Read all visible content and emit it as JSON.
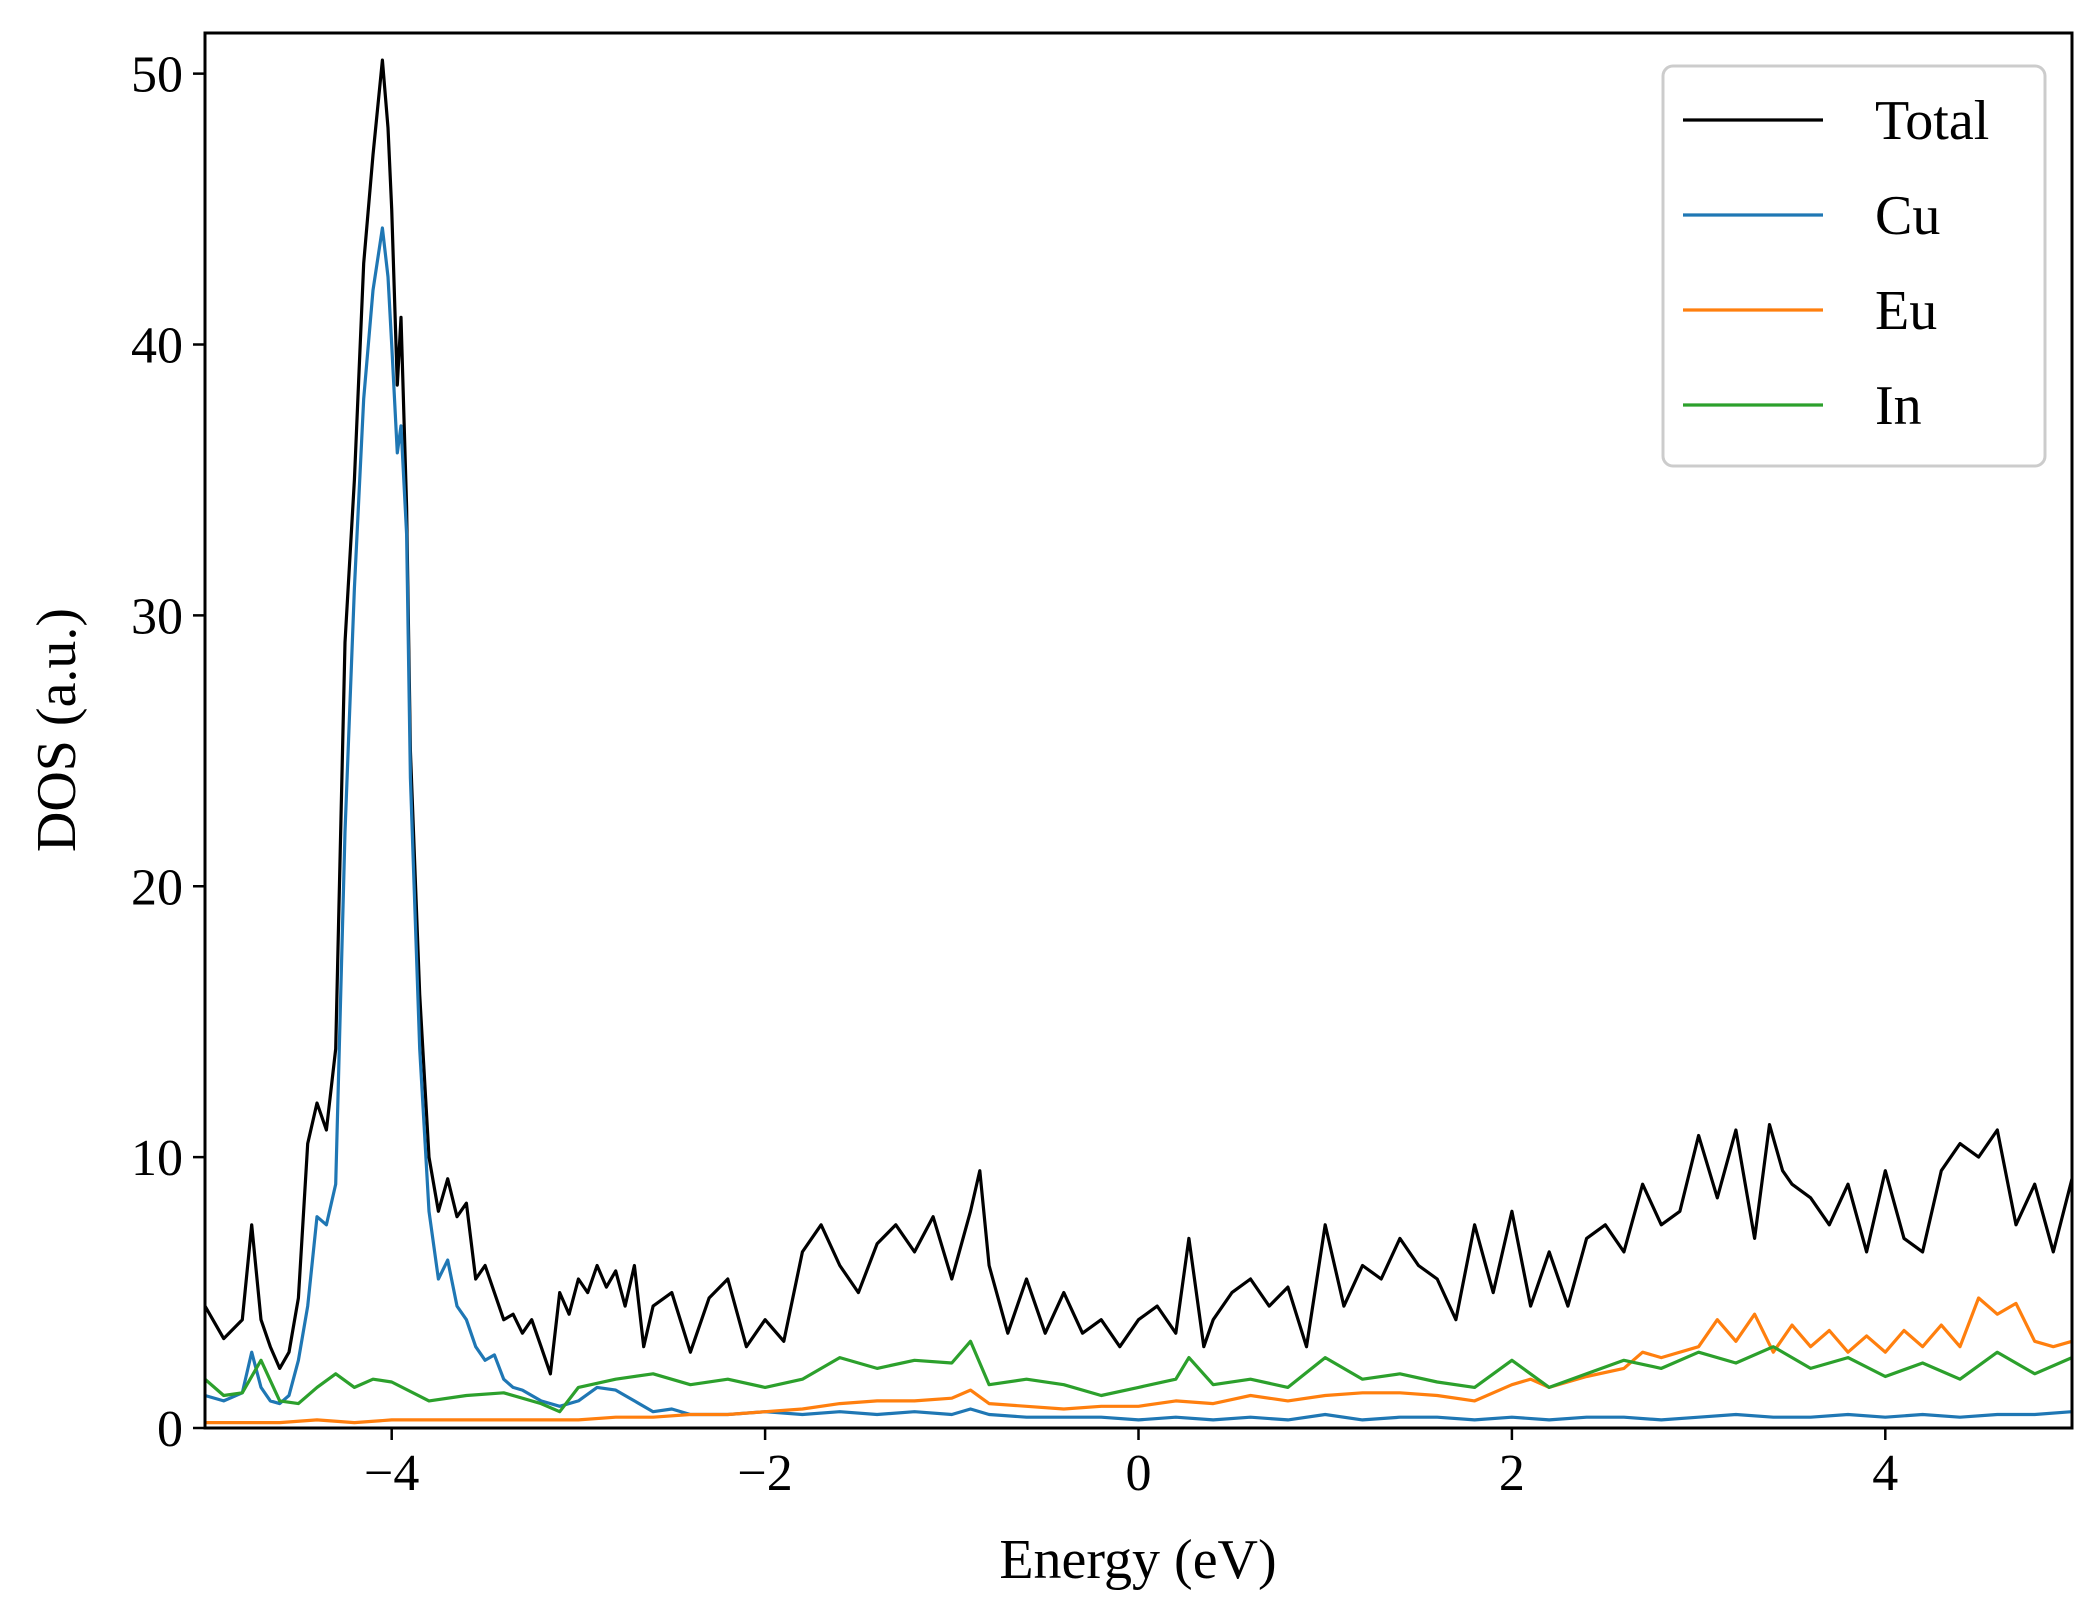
{
  "chart_data": {
    "type": "line",
    "title": "",
    "xlabel": "Energy (eV)",
    "ylabel": "DOS (a.u.)",
    "xlim": [
      -5,
      5
    ],
    "ylim": [
      0,
      51.5
    ],
    "xticks": [
      -4,
      -2,
      0,
      2,
      4
    ],
    "xtick_labels": [
      "−4",
      "−2",
      "0",
      "2",
      "4"
    ],
    "yticks": [
      0,
      10,
      20,
      30,
      40,
      50
    ],
    "ytick_labels": [
      "0",
      "10",
      "20",
      "30",
      "40",
      "50"
    ],
    "grid": false,
    "legend_position": "top-right",
    "series": [
      {
        "name": "Total",
        "color": "#000000",
        "x": [
          -5.0,
          -4.9,
          -4.8,
          -4.75,
          -4.7,
          -4.65,
          -4.6,
          -4.55,
          -4.5,
          -4.45,
          -4.4,
          -4.35,
          -4.3,
          -4.25,
          -4.2,
          -4.15,
          -4.1,
          -4.05,
          -4.02,
          -4.0,
          -3.97,
          -3.95,
          -3.92,
          -3.9,
          -3.85,
          -3.8,
          -3.75,
          -3.7,
          -3.65,
          -3.6,
          -3.55,
          -3.5,
          -3.45,
          -3.4,
          -3.35,
          -3.3,
          -3.25,
          -3.2,
          -3.15,
          -3.1,
          -3.05,
          -3.0,
          -2.95,
          -2.9,
          -2.85,
          -2.8,
          -2.75,
          -2.7,
          -2.65,
          -2.6,
          -2.5,
          -2.4,
          -2.3,
          -2.2,
          -2.1,
          -2.0,
          -1.9,
          -1.8,
          -1.7,
          -1.6,
          -1.5,
          -1.4,
          -1.3,
          -1.2,
          -1.1,
          -1.0,
          -0.9,
          -0.85,
          -0.8,
          -0.7,
          -0.6,
          -0.5,
          -0.4,
          -0.3,
          -0.2,
          -0.1,
          0.0,
          0.1,
          0.2,
          0.27,
          0.35,
          0.4,
          0.5,
          0.6,
          0.7,
          0.8,
          0.9,
          1.0,
          1.1,
          1.2,
          1.3,
          1.4,
          1.5,
          1.6,
          1.7,
          1.8,
          1.9,
          2.0,
          2.1,
          2.2,
          2.3,
          2.4,
          2.5,
          2.6,
          2.7,
          2.8,
          2.9,
          3.0,
          3.1,
          3.2,
          3.3,
          3.38,
          3.45,
          3.5,
          3.6,
          3.7,
          3.8,
          3.9,
          4.0,
          4.1,
          4.2,
          4.3,
          4.4,
          4.5,
          4.6,
          4.7,
          4.8,
          4.9,
          5.0
        ],
        "y": [
          4.5,
          3.3,
          4.0,
          7.5,
          4.0,
          3.0,
          2.2,
          2.8,
          4.8,
          10.5,
          12.0,
          11.0,
          14.0,
          29.0,
          35.0,
          43.0,
          47.0,
          50.5,
          48.0,
          45.0,
          38.5,
          41.0,
          34.0,
          25.0,
          16.0,
          10.0,
          8.0,
          9.2,
          7.8,
          8.3,
          5.5,
          6.0,
          5.0,
          4.0,
          4.2,
          3.5,
          4.0,
          3.0,
          2.0,
          5.0,
          4.2,
          5.5,
          5.0,
          6.0,
          5.2,
          5.8,
          4.5,
          6.0,
          3.0,
          4.5,
          5.0,
          2.8,
          4.8,
          5.5,
          3.0,
          4.0,
          3.2,
          6.5,
          7.5,
          6.0,
          5.0,
          6.8,
          7.5,
          6.5,
          7.8,
          5.5,
          8.0,
          9.5,
          6.0,
          3.5,
          5.5,
          3.5,
          5.0,
          3.5,
          4.0,
          3.0,
          4.0,
          4.5,
          3.5,
          7.0,
          3.0,
          4.0,
          5.0,
          5.5,
          4.5,
          5.2,
          3.0,
          7.5,
          4.5,
          6.0,
          5.5,
          7.0,
          6.0,
          5.5,
          4.0,
          7.5,
          5.0,
          8.0,
          4.5,
          6.5,
          4.5,
          7.0,
          7.5,
          6.5,
          9.0,
          7.5,
          8.0,
          10.8,
          8.5,
          11.0,
          7.0,
          11.2,
          9.5,
          9.0,
          8.5,
          7.5,
          9.0,
          6.5,
          9.5,
          7.0,
          6.5,
          9.5,
          10.5,
          10.0,
          11.0,
          7.5,
          9.0,
          6.5,
          9.2
        ]
      },
      {
        "name": "Cu",
        "color": "#1f77b4",
        "x": [
          -5.0,
          -4.9,
          -4.8,
          -4.75,
          -4.7,
          -4.65,
          -4.6,
          -4.55,
          -4.5,
          -4.45,
          -4.4,
          -4.35,
          -4.3,
          -4.25,
          -4.2,
          -4.15,
          -4.1,
          -4.05,
          -4.02,
          -4.0,
          -3.97,
          -3.95,
          -3.92,
          -3.9,
          -3.85,
          -3.8,
          -3.75,
          -3.7,
          -3.65,
          -3.6,
          -3.55,
          -3.5,
          -3.45,
          -3.4,
          -3.35,
          -3.3,
          -3.2,
          -3.1,
          -3.0,
          -2.9,
          -2.8,
          -2.7,
          -2.6,
          -2.5,
          -2.4,
          -2.2,
          -2.0,
          -1.8,
          -1.6,
          -1.4,
          -1.2,
          -1.0,
          -0.9,
          -0.8,
          -0.6,
          -0.4,
          -0.2,
          0.0,
          0.2,
          0.4,
          0.6,
          0.8,
          1.0,
          1.2,
          1.4,
          1.6,
          1.8,
          2.0,
          2.2,
          2.4,
          2.6,
          2.8,
          3.0,
          3.2,
          3.4,
          3.6,
          3.8,
          4.0,
          4.2,
          4.4,
          4.6,
          4.8,
          5.0
        ],
        "y": [
          1.2,
          1.0,
          1.3,
          2.8,
          1.5,
          1.0,
          0.9,
          1.2,
          2.5,
          4.5,
          7.8,
          7.5,
          9.0,
          22.0,
          31.0,
          38.0,
          42.0,
          44.3,
          42.5,
          40.0,
          36.0,
          37.0,
          33.0,
          24.0,
          14.0,
          8.0,
          5.5,
          6.2,
          4.5,
          4.0,
          3.0,
          2.5,
          2.7,
          1.8,
          1.5,
          1.4,
          1.0,
          0.8,
          1.0,
          1.5,
          1.4,
          1.0,
          0.6,
          0.7,
          0.5,
          0.5,
          0.6,
          0.5,
          0.6,
          0.5,
          0.6,
          0.5,
          0.7,
          0.5,
          0.4,
          0.4,
          0.4,
          0.3,
          0.4,
          0.3,
          0.4,
          0.3,
          0.5,
          0.3,
          0.4,
          0.4,
          0.3,
          0.4,
          0.3,
          0.4,
          0.4,
          0.3,
          0.4,
          0.5,
          0.4,
          0.4,
          0.5,
          0.4,
          0.5,
          0.4,
          0.5,
          0.5,
          0.6
        ]
      },
      {
        "name": "Eu",
        "color": "#ff7f0e",
        "x": [
          -5.0,
          -4.8,
          -4.6,
          -4.4,
          -4.2,
          -4.0,
          -3.8,
          -3.6,
          -3.4,
          -3.2,
          -3.0,
          -2.8,
          -2.6,
          -2.4,
          -2.2,
          -2.0,
          -1.8,
          -1.6,
          -1.4,
          -1.2,
          -1.0,
          -0.9,
          -0.8,
          -0.6,
          -0.4,
          -0.2,
          0.0,
          0.2,
          0.4,
          0.6,
          0.8,
          1.0,
          1.2,
          1.4,
          1.6,
          1.8,
          2.0,
          2.1,
          2.2,
          2.4,
          2.6,
          2.7,
          2.8,
          3.0,
          3.1,
          3.2,
          3.3,
          3.4,
          3.5,
          3.6,
          3.7,
          3.8,
          3.9,
          4.0,
          4.1,
          4.2,
          4.3,
          4.4,
          4.5,
          4.6,
          4.7,
          4.8,
          4.9,
          5.0
        ],
        "y": [
          0.2,
          0.2,
          0.2,
          0.3,
          0.2,
          0.3,
          0.3,
          0.3,
          0.3,
          0.3,
          0.3,
          0.4,
          0.4,
          0.5,
          0.5,
          0.6,
          0.7,
          0.9,
          1.0,
          1.0,
          1.1,
          1.4,
          0.9,
          0.8,
          0.7,
          0.8,
          0.8,
          1.0,
          0.9,
          1.2,
          1.0,
          1.2,
          1.3,
          1.3,
          1.2,
          1.0,
          1.6,
          1.8,
          1.5,
          1.9,
          2.2,
          2.8,
          2.6,
          3.0,
          4.0,
          3.2,
          4.2,
          2.8,
          3.8,
          3.0,
          3.6,
          2.8,
          3.4,
          2.8,
          3.6,
          3.0,
          3.8,
          3.0,
          4.8,
          4.2,
          4.6,
          3.2,
          3.0,
          3.2
        ]
      },
      {
        "name": "In",
        "color": "#2ca02c",
        "x": [
          -5.0,
          -4.9,
          -4.8,
          -4.7,
          -4.6,
          -4.5,
          -4.4,
          -4.3,
          -4.2,
          -4.1,
          -4.0,
          -3.8,
          -3.6,
          -3.4,
          -3.2,
          -3.1,
          -3.0,
          -2.8,
          -2.6,
          -2.4,
          -2.2,
          -2.0,
          -1.8,
          -1.6,
          -1.4,
          -1.2,
          -1.0,
          -0.9,
          -0.8,
          -0.6,
          -0.4,
          -0.2,
          0.0,
          0.2,
          0.27,
          0.4,
          0.6,
          0.8,
          1.0,
          1.2,
          1.4,
          1.6,
          1.8,
          2.0,
          2.2,
          2.4,
          2.6,
          2.8,
          3.0,
          3.2,
          3.4,
          3.6,
          3.8,
          4.0,
          4.2,
          4.4,
          4.6,
          4.8,
          5.0
        ],
        "y": [
          1.8,
          1.2,
          1.3,
          2.5,
          1.0,
          0.9,
          1.5,
          2.0,
          1.5,
          1.8,
          1.7,
          1.0,
          1.2,
          1.3,
          0.9,
          0.6,
          1.5,
          1.8,
          2.0,
          1.6,
          1.8,
          1.5,
          1.8,
          2.6,
          2.2,
          2.5,
          2.4,
          3.2,
          1.6,
          1.8,
          1.6,
          1.2,
          1.5,
          1.8,
          2.6,
          1.6,
          1.8,
          1.5,
          2.6,
          1.8,
          2.0,
          1.7,
          1.5,
          2.5,
          1.5,
          2.0,
          2.5,
          2.2,
          2.8,
          2.4,
          3.0,
          2.2,
          2.6,
          1.9,
          2.4,
          1.8,
          2.8,
          2.0,
          2.6
        ]
      }
    ]
  }
}
